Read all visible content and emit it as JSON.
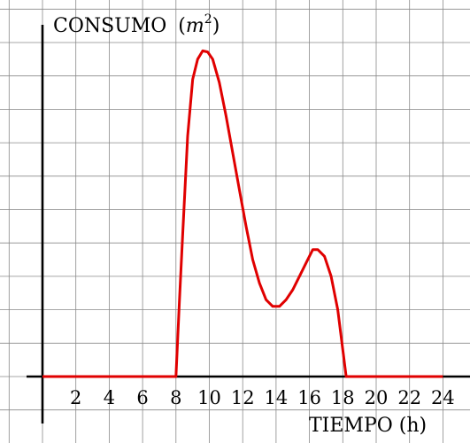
{
  "chart_data": {
    "type": "line",
    "title": "",
    "ylabel": "CONSUMO",
    "ylabel_unit": "m",
    "ylabel_unit_exp": "2",
    "xlabel": "TIEMPO (h)",
    "xlim": [
      -2,
      25
    ],
    "ylim": [
      -1,
      10
    ],
    "xticks": [
      2,
      4,
      6,
      8,
      10,
      12,
      14,
      16,
      18,
      20,
      22,
      24
    ],
    "grid": true,
    "series": [
      {
        "color": "#e00000",
        "x": [
          0,
          8,
          8.2,
          8.4,
          8.7,
          9.0,
          9.3,
          9.6,
          9.9,
          10.2,
          10.6,
          11.0,
          11.4,
          11.8,
          12.2,
          12.6,
          13.0,
          13.4,
          13.8,
          14.2,
          14.6,
          15.0,
          15.4,
          15.8,
          16.2,
          16.5,
          16.9,
          17.3,
          17.7,
          18.0,
          18.2,
          24
        ],
        "y": [
          0,
          0,
          2.2,
          4.2,
          7.2,
          8.9,
          9.5,
          9.75,
          9.72,
          9.5,
          8.8,
          7.8,
          6.7,
          5.6,
          4.5,
          3.5,
          2.8,
          2.3,
          2.1,
          2.1,
          2.3,
          2.6,
          3.0,
          3.4,
          3.8,
          3.8,
          3.6,
          3.0,
          2.0,
          0.8,
          0,
          0
        ]
      }
    ]
  }
}
